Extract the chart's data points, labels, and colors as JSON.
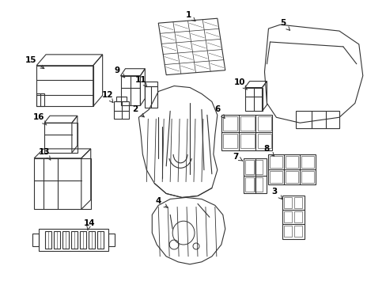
{
  "background_color": "#ffffff",
  "line_color": "#333333",
  "text_color": "#000000",
  "figsize": [
    4.89,
    3.6
  ],
  "dpi": 100
}
